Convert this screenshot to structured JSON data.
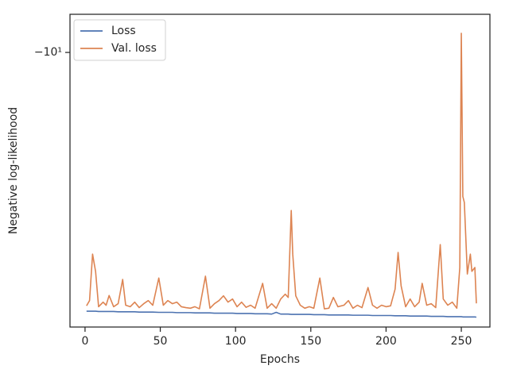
{
  "chart_data": {
    "type": "line",
    "xlabel": "Epochs",
    "ylabel": "Negative log-likelihood",
    "x": [
      1,
      3,
      5,
      7,
      9,
      12,
      14,
      16,
      19,
      22,
      25,
      27,
      30,
      33,
      36,
      39,
      42,
      45,
      49,
      52,
      55,
      58,
      61,
      64,
      67,
      70,
      73,
      76,
      80,
      83,
      86,
      89,
      92,
      95,
      98,
      101,
      104,
      107,
      110,
      113,
      118,
      121,
      124,
      127,
      130,
      133,
      135,
      137,
      138,
      140,
      143,
      146,
      149,
      152,
      156,
      159,
      162,
      165,
      168,
      172,
      175,
      178,
      181,
      184,
      188,
      191,
      194,
      197,
      200,
      203,
      206,
      208,
      210,
      213,
      216,
      219,
      222,
      224,
      227,
      230,
      233,
      236,
      238,
      241,
      244,
      247,
      249,
      250,
      251,
      252,
      254,
      256,
      257,
      259,
      260
    ],
    "series": [
      {
        "name": "Loss",
        "color": "#4c72b0",
        "values": [
          -53.0,
          -53.0,
          -53.0,
          -53.0,
          -53.1,
          -53.1,
          -53.1,
          -53.1,
          -53.1,
          -53.2,
          -53.2,
          -53.2,
          -53.2,
          -53.2,
          -53.3,
          -53.3,
          -53.3,
          -53.3,
          -53.4,
          -53.4,
          -53.4,
          -53.4,
          -53.5,
          -53.5,
          -53.5,
          -53.5,
          -53.6,
          -53.6,
          -53.6,
          -53.6,
          -53.7,
          -53.7,
          -53.7,
          -53.7,
          -53.7,
          -53.8,
          -53.8,
          -53.8,
          -53.8,
          -53.9,
          -53.9,
          -53.9,
          -54.0,
          -53.4,
          -54.0,
          -54.0,
          -54.0,
          -54.1,
          -54.1,
          -54.1,
          -54.1,
          -54.1,
          -54.1,
          -54.2,
          -54.2,
          -54.2,
          -54.3,
          -54.3,
          -54.3,
          -54.3,
          -54.3,
          -54.4,
          -54.4,
          -54.4,
          -54.4,
          -54.5,
          -54.5,
          -54.5,
          -54.5,
          -54.5,
          -54.6,
          -54.6,
          -54.6,
          -54.6,
          -54.7,
          -54.7,
          -54.7,
          -54.7,
          -54.7,
          -54.8,
          -54.8,
          -54.8,
          -54.8,
          -54.9,
          -54.9,
          -54.9,
          -54.9,
          -54.9,
          -55.0,
          -55.0,
          -55.0,
          -55.0,
          -55.0,
          -55.0,
          -55.1
        ]
      },
      {
        "name": "Val. loss",
        "color": "#dd8452",
        "values": [
          -51.2,
          -49.5,
          -36.7,
          -41,
          -51.5,
          -50,
          -51,
          -47.9,
          -51.5,
          -50.5,
          -43.2,
          -51,
          -51.5,
          -50,
          -51.8,
          -50.5,
          -49.5,
          -51,
          -42.8,
          -51,
          -49.5,
          -50.5,
          -50,
          -51.5,
          -51.8,
          -52,
          -51.5,
          -52.2,
          -42.3,
          -52,
          -50.5,
          -49.5,
          -48,
          -50,
          -49,
          -51.5,
          -50,
          -51.7,
          -51,
          -52,
          -44.3,
          -52,
          -50.5,
          -52,
          -49,
          -47.5,
          -48.5,
          -27.7,
          -36.7,
          -48,
          -51,
          -52,
          -51.5,
          -52,
          -42.8,
          -52.2,
          -52,
          -48.5,
          -51.5,
          -51,
          -49.5,
          -52,
          -51,
          -51.8,
          -45.5,
          -51,
          -52,
          -51,
          -51.5,
          -51.2,
          -46,
          -36.3,
          -45,
          -51.5,
          -49,
          -51.5,
          -50,
          -44.3,
          -51,
          -50.5,
          -51.8,
          -34.5,
          -49,
          -51,
          -50,
          -52,
          -40,
          -8.84,
          -25.3,
          -26.3,
          -41.7,
          -36.7,
          -41,
          -40,
          -50.4
        ]
      }
    ],
    "xlim": [
      -10,
      269
    ],
    "xticks": [
      0,
      50,
      100,
      150,
      200,
      250
    ],
    "ylim": [
      -7.82,
      -58.7
    ],
    "yticks": [
      {
        "value": -10,
        "label": "−10¹"
      }
    ],
    "yscale": "symlog",
    "legend": "upper left"
  }
}
